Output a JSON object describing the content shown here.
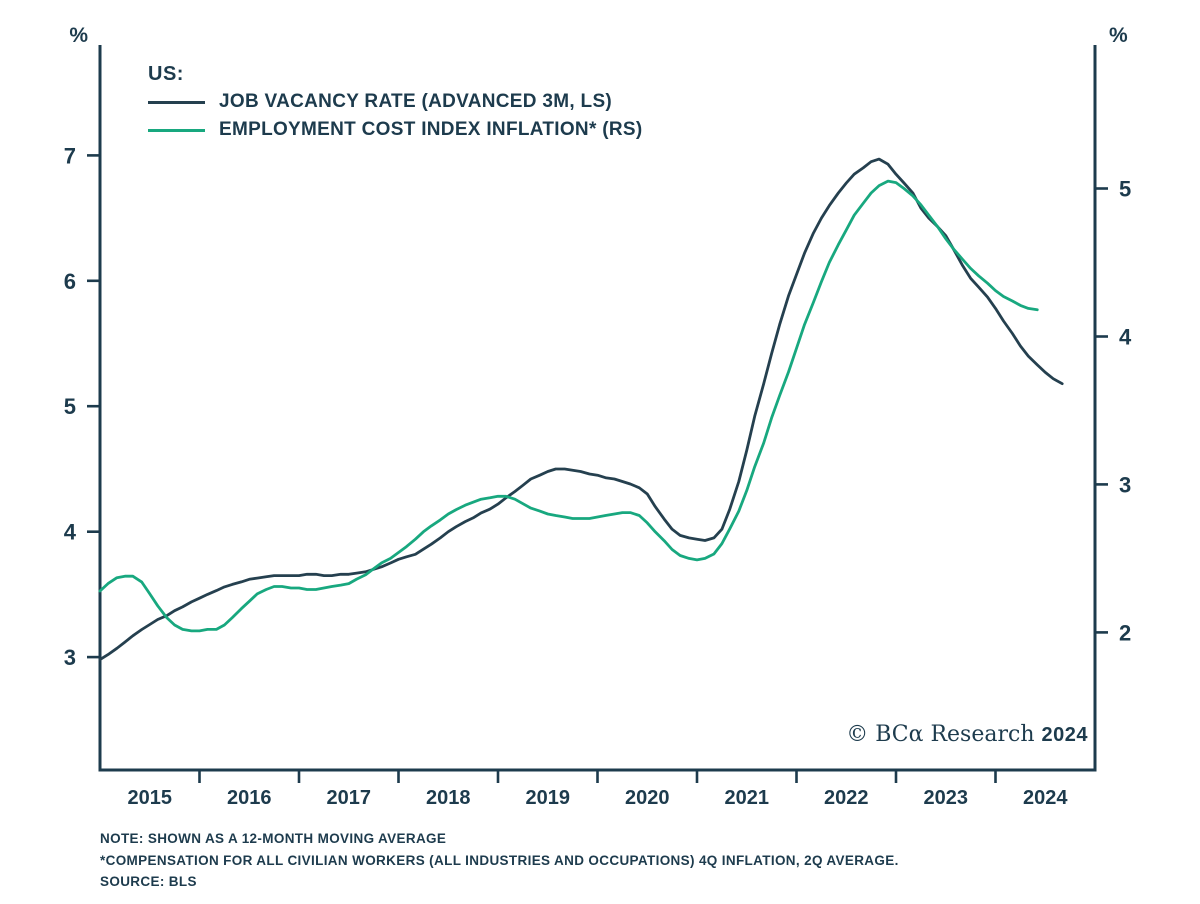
{
  "colors": {
    "background": "#ffffff",
    "ink": "#1d3b4d",
    "line_dark": "#25404f",
    "line_green": "#18a87f"
  },
  "chart_data": {
    "type": "line",
    "title": "",
    "legend": {
      "position": "top-left",
      "heading": "US:",
      "entries": [
        {
          "label": "JOB VACANCY RATE (ADVANCED 3M, LS)",
          "color": "#25404f"
        },
        {
          "label": "EMPLOYMENT COST INDEX INFLATION* (RS)",
          "color": "#18a87f"
        }
      ]
    },
    "x_axis": {
      "range": [
        2015,
        2025
      ],
      "tick_positions": [
        2016,
        2017,
        2018,
        2019,
        2020,
        2021,
        2022,
        2023,
        2024
      ],
      "labels": [
        "2015",
        "2016",
        "2017",
        "2018",
        "2019",
        "2020",
        "2021",
        "2022",
        "2023",
        "2024"
      ],
      "label_positions": [
        2015.5,
        2016.5,
        2017.5,
        2018.5,
        2019.5,
        2020.5,
        2021.5,
        2022.5,
        2023.5,
        2024.5
      ]
    },
    "left_axis": {
      "unit": "%",
      "ticks": [
        3,
        4,
        5,
        6,
        7
      ],
      "range": [
        2.1,
        7.88
      ]
    },
    "right_axis": {
      "unit": "%",
      "ticks": [
        2,
        3,
        4,
        5
      ],
      "range": [
        1.07,
        5.97
      ]
    },
    "grid": false,
    "series": [
      {
        "name": "Job Vacancy Rate (Advanced 3M, LS)",
        "axis": "left",
        "color": "#25404f",
        "points": [
          [
            2015.0,
            2.98
          ],
          [
            2015.08,
            3.02
          ],
          [
            2015.17,
            3.07
          ],
          [
            2015.25,
            3.12
          ],
          [
            2015.33,
            3.17
          ],
          [
            2015.42,
            3.22
          ],
          [
            2015.5,
            3.26
          ],
          [
            2015.58,
            3.3
          ],
          [
            2015.67,
            3.33
          ],
          [
            2015.75,
            3.37
          ],
          [
            2015.83,
            3.4
          ],
          [
            2015.92,
            3.44
          ],
          [
            2016.0,
            3.47
          ],
          [
            2016.08,
            3.5
          ],
          [
            2016.17,
            3.53
          ],
          [
            2016.25,
            3.56
          ],
          [
            2016.33,
            3.58
          ],
          [
            2016.42,
            3.6
          ],
          [
            2016.5,
            3.62
          ],
          [
            2016.58,
            3.63
          ],
          [
            2016.67,
            3.64
          ],
          [
            2016.75,
            3.65
          ],
          [
            2016.83,
            3.65
          ],
          [
            2016.92,
            3.65
          ],
          [
            2017.0,
            3.65
          ],
          [
            2017.08,
            3.66
          ],
          [
            2017.17,
            3.66
          ],
          [
            2017.25,
            3.65
          ],
          [
            2017.33,
            3.65
          ],
          [
            2017.42,
            3.66
          ],
          [
            2017.5,
            3.66
          ],
          [
            2017.58,
            3.67
          ],
          [
            2017.67,
            3.68
          ],
          [
            2017.75,
            3.7
          ],
          [
            2017.83,
            3.72
          ],
          [
            2017.92,
            3.75
          ],
          [
            2018.0,
            3.78
          ],
          [
            2018.08,
            3.8
          ],
          [
            2018.17,
            3.82
          ],
          [
            2018.25,
            3.86
          ],
          [
            2018.33,
            3.9
          ],
          [
            2018.42,
            3.95
          ],
          [
            2018.5,
            4.0
          ],
          [
            2018.58,
            4.04
          ],
          [
            2018.67,
            4.08
          ],
          [
            2018.75,
            4.11
          ],
          [
            2018.83,
            4.15
          ],
          [
            2018.92,
            4.18
          ],
          [
            2019.0,
            4.22
          ],
          [
            2019.08,
            4.27
          ],
          [
            2019.17,
            4.32
          ],
          [
            2019.25,
            4.37
          ],
          [
            2019.33,
            4.42
          ],
          [
            2019.42,
            4.45
          ],
          [
            2019.5,
            4.48
          ],
          [
            2019.58,
            4.5
          ],
          [
            2019.67,
            4.5
          ],
          [
            2019.75,
            4.49
          ],
          [
            2019.83,
            4.48
          ],
          [
            2019.92,
            4.46
          ],
          [
            2020.0,
            4.45
          ],
          [
            2020.08,
            4.43
          ],
          [
            2020.17,
            4.42
          ],
          [
            2020.25,
            4.4
          ],
          [
            2020.33,
            4.38
          ],
          [
            2020.42,
            4.35
          ],
          [
            2020.5,
            4.3
          ],
          [
            2020.58,
            4.2
          ],
          [
            2020.67,
            4.1
          ],
          [
            2020.75,
            4.02
          ],
          [
            2020.83,
            3.97
          ],
          [
            2020.92,
            3.95
          ],
          [
            2021.0,
            3.94
          ],
          [
            2021.08,
            3.93
          ],
          [
            2021.17,
            3.95
          ],
          [
            2021.25,
            4.02
          ],
          [
            2021.33,
            4.18
          ],
          [
            2021.42,
            4.4
          ],
          [
            2021.5,
            4.65
          ],
          [
            2021.58,
            4.92
          ],
          [
            2021.67,
            5.18
          ],
          [
            2021.75,
            5.42
          ],
          [
            2021.83,
            5.65
          ],
          [
            2021.92,
            5.88
          ],
          [
            2022.0,
            6.05
          ],
          [
            2022.08,
            6.22
          ],
          [
            2022.17,
            6.38
          ],
          [
            2022.25,
            6.5
          ],
          [
            2022.33,
            6.6
          ],
          [
            2022.42,
            6.7
          ],
          [
            2022.5,
            6.78
          ],
          [
            2022.58,
            6.85
          ],
          [
            2022.67,
            6.9
          ],
          [
            2022.75,
            6.95
          ],
          [
            2022.83,
            6.97
          ],
          [
            2022.92,
            6.93
          ],
          [
            2023.0,
            6.85
          ],
          [
            2023.08,
            6.78
          ],
          [
            2023.17,
            6.7
          ],
          [
            2023.25,
            6.58
          ],
          [
            2023.33,
            6.5
          ],
          [
            2023.42,
            6.43
          ],
          [
            2023.5,
            6.36
          ],
          [
            2023.58,
            6.25
          ],
          [
            2023.67,
            6.12
          ],
          [
            2023.75,
            6.02
          ],
          [
            2023.83,
            5.95
          ],
          [
            2023.92,
            5.87
          ],
          [
            2024.0,
            5.78
          ],
          [
            2024.08,
            5.68
          ],
          [
            2024.17,
            5.58
          ],
          [
            2024.25,
            5.48
          ],
          [
            2024.33,
            5.4
          ],
          [
            2024.42,
            5.33
          ],
          [
            2024.5,
            5.27
          ],
          [
            2024.58,
            5.22
          ],
          [
            2024.67,
            5.18
          ]
        ]
      },
      {
        "name": "Employment Cost Index Inflation (RS)",
        "axis": "right",
        "color": "#18a87f",
        "points": [
          [
            2015.0,
            2.28
          ],
          [
            2015.08,
            2.33
          ],
          [
            2015.17,
            2.37
          ],
          [
            2015.25,
            2.38
          ],
          [
            2015.33,
            2.38
          ],
          [
            2015.42,
            2.34
          ],
          [
            2015.5,
            2.26
          ],
          [
            2015.58,
            2.18
          ],
          [
            2015.67,
            2.1
          ],
          [
            2015.75,
            2.05
          ],
          [
            2015.83,
            2.02
          ],
          [
            2015.92,
            2.01
          ],
          [
            2016.0,
            2.01
          ],
          [
            2016.08,
            2.02
          ],
          [
            2016.17,
            2.02
          ],
          [
            2016.25,
            2.05
          ],
          [
            2016.33,
            2.1
          ],
          [
            2016.42,
            2.16
          ],
          [
            2016.5,
            2.21
          ],
          [
            2016.58,
            2.26
          ],
          [
            2016.67,
            2.29
          ],
          [
            2016.75,
            2.31
          ],
          [
            2016.83,
            2.31
          ],
          [
            2016.92,
            2.3
          ],
          [
            2017.0,
            2.3
          ],
          [
            2017.08,
            2.29
          ],
          [
            2017.17,
            2.29
          ],
          [
            2017.25,
            2.3
          ],
          [
            2017.33,
            2.31
          ],
          [
            2017.42,
            2.32
          ],
          [
            2017.5,
            2.33
          ],
          [
            2017.58,
            2.36
          ],
          [
            2017.67,
            2.39
          ],
          [
            2017.75,
            2.43
          ],
          [
            2017.83,
            2.47
          ],
          [
            2017.92,
            2.5
          ],
          [
            2018.0,
            2.54
          ],
          [
            2018.08,
            2.58
          ],
          [
            2018.17,
            2.63
          ],
          [
            2018.25,
            2.68
          ],
          [
            2018.33,
            2.72
          ],
          [
            2018.42,
            2.76
          ],
          [
            2018.5,
            2.8
          ],
          [
            2018.58,
            2.83
          ],
          [
            2018.67,
            2.86
          ],
          [
            2018.75,
            2.88
          ],
          [
            2018.83,
            2.9
          ],
          [
            2018.92,
            2.91
          ],
          [
            2019.0,
            2.92
          ],
          [
            2019.08,
            2.92
          ],
          [
            2019.17,
            2.9
          ],
          [
            2019.25,
            2.87
          ],
          [
            2019.33,
            2.84
          ],
          [
            2019.42,
            2.82
          ],
          [
            2019.5,
            2.8
          ],
          [
            2019.58,
            2.79
          ],
          [
            2019.67,
            2.78
          ],
          [
            2019.75,
            2.77
          ],
          [
            2019.83,
            2.77
          ],
          [
            2019.92,
            2.77
          ],
          [
            2020.0,
            2.78
          ],
          [
            2020.08,
            2.79
          ],
          [
            2020.17,
            2.8
          ],
          [
            2020.25,
            2.81
          ],
          [
            2020.33,
            2.81
          ],
          [
            2020.42,
            2.79
          ],
          [
            2020.5,
            2.74
          ],
          [
            2020.58,
            2.68
          ],
          [
            2020.67,
            2.62
          ],
          [
            2020.75,
            2.56
          ],
          [
            2020.83,
            2.52
          ],
          [
            2020.92,
            2.5
          ],
          [
            2021.0,
            2.49
          ],
          [
            2021.08,
            2.5
          ],
          [
            2021.17,
            2.53
          ],
          [
            2021.25,
            2.6
          ],
          [
            2021.33,
            2.7
          ],
          [
            2021.42,
            2.82
          ],
          [
            2021.5,
            2.96
          ],
          [
            2021.58,
            3.12
          ],
          [
            2021.67,
            3.28
          ],
          [
            2021.75,
            3.45
          ],
          [
            2021.83,
            3.6
          ],
          [
            2021.92,
            3.76
          ],
          [
            2022.0,
            3.92
          ],
          [
            2022.08,
            4.08
          ],
          [
            2022.17,
            4.23
          ],
          [
            2022.25,
            4.37
          ],
          [
            2022.33,
            4.5
          ],
          [
            2022.42,
            4.62
          ],
          [
            2022.5,
            4.72
          ],
          [
            2022.58,
            4.82
          ],
          [
            2022.67,
            4.9
          ],
          [
            2022.75,
            4.97
          ],
          [
            2022.83,
            5.02
          ],
          [
            2022.92,
            5.05
          ],
          [
            2023.0,
            5.04
          ],
          [
            2023.08,
            5.0
          ],
          [
            2023.17,
            4.95
          ],
          [
            2023.25,
            4.89
          ],
          [
            2023.33,
            4.82
          ],
          [
            2023.42,
            4.74
          ],
          [
            2023.5,
            4.66
          ],
          [
            2023.58,
            4.59
          ],
          [
            2023.67,
            4.52
          ],
          [
            2023.75,
            4.46
          ],
          [
            2023.83,
            4.41
          ],
          [
            2023.92,
            4.36
          ],
          [
            2024.0,
            4.31
          ],
          [
            2024.08,
            4.27
          ],
          [
            2024.17,
            4.24
          ],
          [
            2024.25,
            4.21
          ],
          [
            2024.33,
            4.19
          ],
          [
            2024.42,
            4.18
          ]
        ]
      }
    ]
  },
  "attribution": {
    "symbol_text": "© BCα Research",
    "year": "2024"
  },
  "footer": {
    "notes": [
      "NOTE: SHOWN AS A 12-MONTH MOVING AVERAGE",
      "*COMPENSATION FOR ALL CIVILIAN WORKERS (ALL INDUSTRIES AND OCCUPATIONS) 4Q INFLATION, 2Q AVERAGE.",
      "SOURCE: BLS"
    ]
  }
}
